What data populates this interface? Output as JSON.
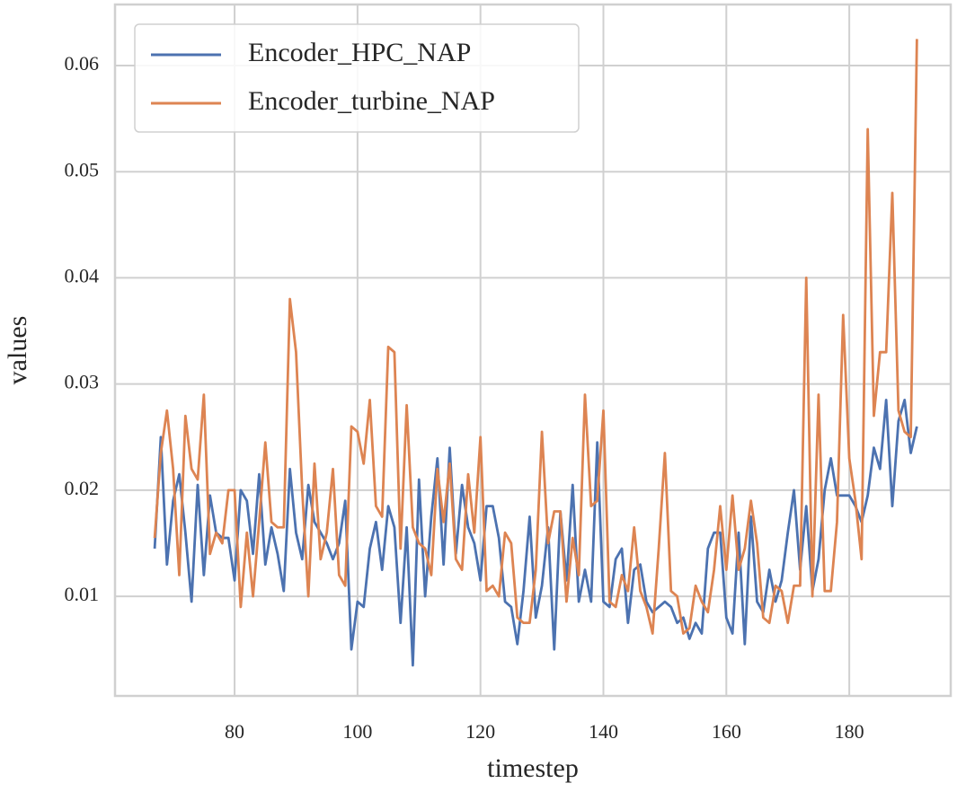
{
  "chart_data": {
    "type": "line",
    "xlabel": "timestep",
    "ylabel": "values",
    "x": [
      67,
      68,
      69,
      70,
      71,
      72,
      73,
      74,
      75,
      76,
      77,
      78,
      79,
      80,
      81,
      82,
      83,
      84,
      85,
      86,
      87,
      88,
      89,
      90,
      91,
      92,
      93,
      94,
      95,
      96,
      97,
      98,
      99,
      100,
      101,
      102,
      103,
      104,
      105,
      106,
      107,
      108,
      109,
      110,
      111,
      112,
      113,
      114,
      115,
      116,
      117,
      118,
      119,
      120,
      121,
      122,
      123,
      124,
      125,
      126,
      127,
      128,
      129,
      130,
      131,
      132,
      133,
      134,
      135,
      136,
      137,
      138,
      139,
      140,
      141,
      142,
      143,
      144,
      145,
      146,
      147,
      148,
      149,
      150,
      151,
      152,
      153,
      154,
      155,
      156,
      157,
      158,
      159,
      160,
      161,
      162,
      163,
      164,
      165,
      166,
      167,
      168,
      169,
      170,
      171,
      172,
      173,
      174,
      175,
      176,
      177,
      178,
      179,
      180,
      181,
      182,
      183,
      184,
      185,
      186,
      187,
      188,
      189,
      190,
      191
    ],
    "series": [
      {
        "name": "Encoder_HPC_NAP",
        "color": "#4c72b0",
        "values": [
          0.0145,
          0.025,
          0.013,
          0.019,
          0.0215,
          0.016,
          0.0095,
          0.0205,
          0.012,
          0.0195,
          0.016,
          0.0155,
          0.0155,
          0.0115,
          0.02,
          0.019,
          0.014,
          0.0215,
          0.013,
          0.0165,
          0.014,
          0.0105,
          0.022,
          0.016,
          0.0135,
          0.0205,
          0.017,
          0.016,
          0.015,
          0.0135,
          0.015,
          0.019,
          0.005,
          0.0095,
          0.009,
          0.0145,
          0.017,
          0.0125,
          0.0185,
          0.0165,
          0.0075,
          0.0165,
          0.0035,
          0.021,
          0.01,
          0.0175,
          0.023,
          0.013,
          0.024,
          0.014,
          0.0205,
          0.0165,
          0.015,
          0.0115,
          0.0185,
          0.0185,
          0.0155,
          0.0095,
          0.009,
          0.0055,
          0.0105,
          0.0175,
          0.008,
          0.011,
          0.0165,
          0.005,
          0.018,
          0.0115,
          0.0205,
          0.0095,
          0.0125,
          0.0095,
          0.0245,
          0.0095,
          0.009,
          0.0135,
          0.0145,
          0.0075,
          0.0125,
          0.013,
          0.0095,
          0.0085,
          0.009,
          0.0095,
          0.009,
          0.0075,
          0.008,
          0.006,
          0.0075,
          0.0065,
          0.0145,
          0.016,
          0.016,
          0.008,
          0.0065,
          0.016,
          0.0055,
          0.0175,
          0.0095,
          0.0085,
          0.0125,
          0.0095,
          0.0115,
          0.016,
          0.02,
          0.0125,
          0.0185,
          0.0105,
          0.0135,
          0.02,
          0.023,
          0.0195,
          0.0195,
          0.0195,
          0.0185,
          0.017,
          0.0195,
          0.024,
          0.022,
          0.0285,
          0.0185,
          0.0265,
          0.0285,
          0.0235,
          0.026
        ]
      },
      {
        "name": "Encoder_turbine_NAP",
        "color": "#dd8452",
        "values": [
          0.0155,
          0.0235,
          0.0275,
          0.022,
          0.012,
          0.027,
          0.022,
          0.021,
          0.029,
          0.014,
          0.016,
          0.015,
          0.02,
          0.02,
          0.009,
          0.016,
          0.01,
          0.017,
          0.0245,
          0.017,
          0.0165,
          0.0165,
          0.038,
          0.033,
          0.02,
          0.01,
          0.0225,
          0.0135,
          0.016,
          0.022,
          0.012,
          0.011,
          0.026,
          0.0255,
          0.0225,
          0.0285,
          0.0185,
          0.0175,
          0.0335,
          0.033,
          0.0145,
          0.028,
          0.0165,
          0.015,
          0.0145,
          0.012,
          0.022,
          0.017,
          0.0225,
          0.0135,
          0.0125,
          0.0215,
          0.016,
          0.025,
          0.0105,
          0.011,
          0.01,
          0.016,
          0.015,
          0.008,
          0.0075,
          0.0075,
          0.0125,
          0.0255,
          0.015,
          0.018,
          0.018,
          0.0095,
          0.0155,
          0.012,
          0.029,
          0.0185,
          0.019,
          0.0275,
          0.0095,
          0.009,
          0.012,
          0.0105,
          0.0165,
          0.0105,
          0.009,
          0.0065,
          0.0145,
          0.0235,
          0.0105,
          0.01,
          0.0065,
          0.007,
          0.011,
          0.0095,
          0.0085,
          0.0125,
          0.0185,
          0.0125,
          0.0195,
          0.0125,
          0.0145,
          0.019,
          0.015,
          0.008,
          0.0075,
          0.011,
          0.0105,
          0.0075,
          0.011,
          0.011,
          0.04,
          0.01,
          0.029,
          0.0105,
          0.0105,
          0.017,
          0.0365,
          0.023,
          0.019,
          0.0135,
          0.054,
          0.027,
          0.033,
          0.033,
          0.048,
          0.0275,
          0.0255,
          0.025,
          0.0625
        ]
      }
    ],
    "xlim": [
      60.55,
      196.5
    ],
    "ylim": [
      0.00062,
      0.06575
    ],
    "xticks": [
      80,
      100,
      120,
      140,
      160,
      180
    ],
    "yticks": [
      0.01,
      0.02,
      0.03,
      0.04,
      0.05,
      0.06
    ],
    "grid": true,
    "legend": "upper left"
  }
}
